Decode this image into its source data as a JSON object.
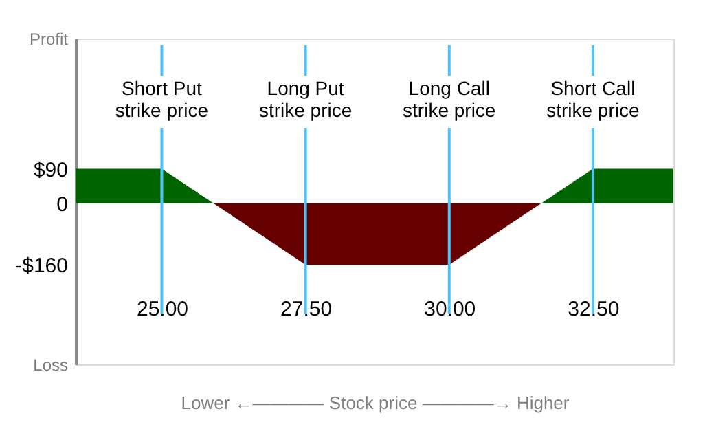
{
  "chart_data": {
    "type": "area",
    "xlabel": "Lower ←———— Stock price ————→ Higher",
    "x": [
      23.5,
      25,
      25.9,
      27.5,
      30,
      31.6,
      32.5,
      33.9
    ],
    "series": [
      {
        "color": "#006400",
        "values": [
          90,
          90,
          0,
          0,
          0,
          0,
          90,
          90
        ]
      },
      {
        "color": "#660000",
        "values": [
          0,
          0,
          0,
          -160,
          -160,
          0,
          0,
          0
        ]
      }
    ],
    "xlim": [
      23.5,
      33.9
    ],
    "ylim": [
      -420,
      430
    ],
    "xticks": [
      {
        "value": 25,
        "label": "25.00"
      },
      {
        "value": 27.5,
        "label": "27.50"
      },
      {
        "value": 30,
        "label": "30.00"
      },
      {
        "value": 32.5,
        "label": "32.50"
      }
    ],
    "yticks": [
      {
        "value": 430,
        "label": "Profit"
      },
      {
        "value": 90,
        "label": "$90"
      },
      {
        "value": 0,
        "label": "0"
      },
      {
        "value": -160,
        "label": "-$160"
      },
      {
        "value": -420,
        "label": "Loss"
      }
    ],
    "ref_lines": [
      {
        "axis": "x",
        "value": 25,
        "label": "Short Put\nstrike price",
        "color": "#4fc3f7"
      },
      {
        "axis": "x",
        "value": 27.5,
        "label": "Long Put\nstrike price",
        "color": "#4fc3f7"
      },
      {
        "axis": "x",
        "value": 30,
        "label": "Long Call\nstrike price",
        "color": "#4fc3f7"
      },
      {
        "axis": "x",
        "value": 32.5,
        "label": "Short Call\nstrike price",
        "color": "#4fc3f7"
      }
    ],
    "grid": false
  }
}
